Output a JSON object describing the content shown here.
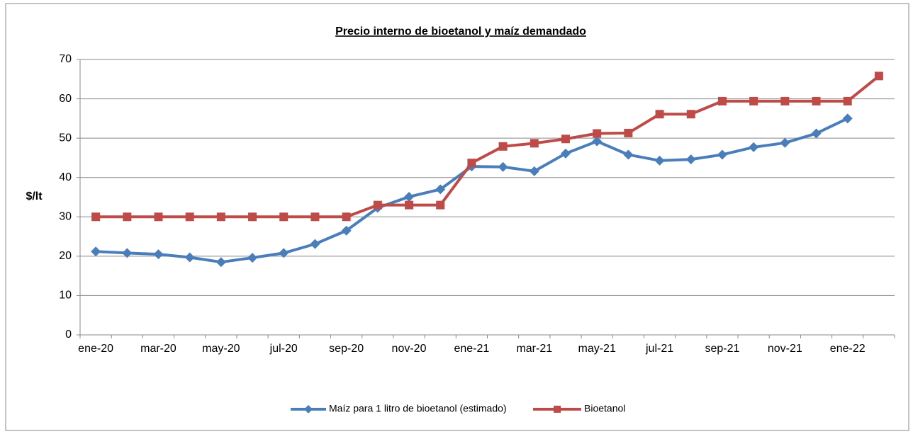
{
  "chart_data": {
    "type": "line",
    "title": "Precio interno de bioetanol y maíz demandado",
    "y_label": "$/lt",
    "categories": [
      "ene-20",
      null,
      "mar-20",
      null,
      "may-20",
      null,
      "jul-20",
      null,
      "sep-20",
      null,
      "nov-20",
      null,
      "ene-21",
      null,
      "mar-21",
      null,
      "may-21",
      null,
      "jul-21",
      null,
      "sep-21",
      null,
      "nov-21",
      null,
      "ene-22",
      null
    ],
    "series": [
      {
        "name": "Maíz para 1 litro de bioetanol (estimado)",
        "color": "#4a7ebb",
        "marker": "diamond",
        "values": [
          21.2,
          20.8,
          20.5,
          19.7,
          18.5,
          19.6,
          20.8,
          23.1,
          26.5,
          32.3,
          35.1,
          37.0,
          42.8,
          42.7,
          41.6,
          46.1,
          49.2,
          45.8,
          44.3,
          44.6,
          45.8,
          47.7,
          48.8,
          51.2,
          55.0,
          null
        ]
      },
      {
        "name": "Bioetanol",
        "color": "#be4b48",
        "marker": "square",
        "values": [
          30,
          30,
          30,
          30,
          30,
          30,
          30,
          30,
          30,
          33,
          33,
          33,
          43.7,
          47.9,
          48.7,
          49.8,
          51.2,
          51.3,
          56.1,
          56.1,
          59.4,
          59.4,
          59.4,
          59.4,
          59.4,
          65.8
        ]
      }
    ],
    "ylim": [
      0,
      70
    ],
    "yticks": [
      0,
      10,
      20,
      30,
      40,
      50,
      60,
      70
    ],
    "grid": true,
    "legend": "bottom"
  }
}
